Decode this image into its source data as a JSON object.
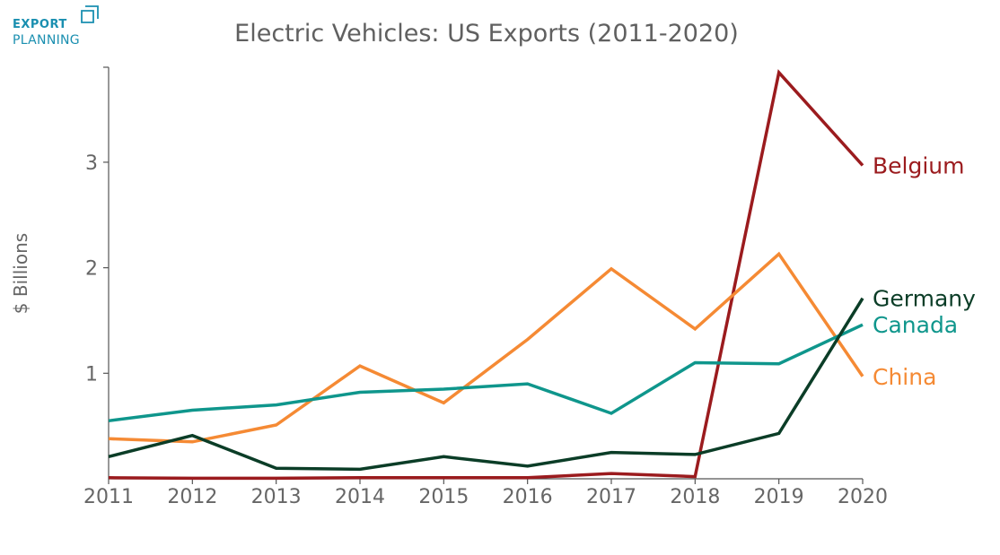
{
  "logo": {
    "line1": "EXPORT",
    "line2": "PLANNING",
    "color": "#1a8fb0"
  },
  "chart_data": {
    "type": "line",
    "title": "Electric Vehicles: US Exports (2011-2020)",
    "xlabel": "",
    "ylabel": "$ Billions",
    "x": [
      "2011",
      "2012",
      "2013",
      "2014",
      "2015",
      "2016",
      "2017",
      "2018",
      "2019",
      "2020"
    ],
    "xlim": [
      2011,
      2020
    ],
    "ylim": [
      0,
      3.9
    ],
    "yticks": [
      1,
      2,
      3
    ],
    "grid": false,
    "legend": "direct labels at line ends",
    "series": [
      {
        "name": "Belgium",
        "color": "#9b1b1e",
        "values": [
          0.01,
          0.005,
          0.005,
          0.01,
          0.01,
          0.01,
          0.05,
          0.02,
          3.85,
          2.97
        ]
      },
      {
        "name": "China",
        "color": "#f58a34",
        "values": [
          0.38,
          0.35,
          0.51,
          1.07,
          0.72,
          1.32,
          1.99,
          1.42,
          2.13,
          0.97
        ]
      },
      {
        "name": "Canada",
        "color": "#0f968c",
        "values": [
          0.55,
          0.65,
          0.7,
          0.82,
          0.85,
          0.9,
          0.62,
          1.1,
          1.09,
          1.46
        ]
      },
      {
        "name": "Germany",
        "color": "#0b3d27",
        "values": [
          0.21,
          0.41,
          0.1,
          0.09,
          0.21,
          0.12,
          0.25,
          0.23,
          0.43,
          1.71
        ]
      }
    ]
  }
}
